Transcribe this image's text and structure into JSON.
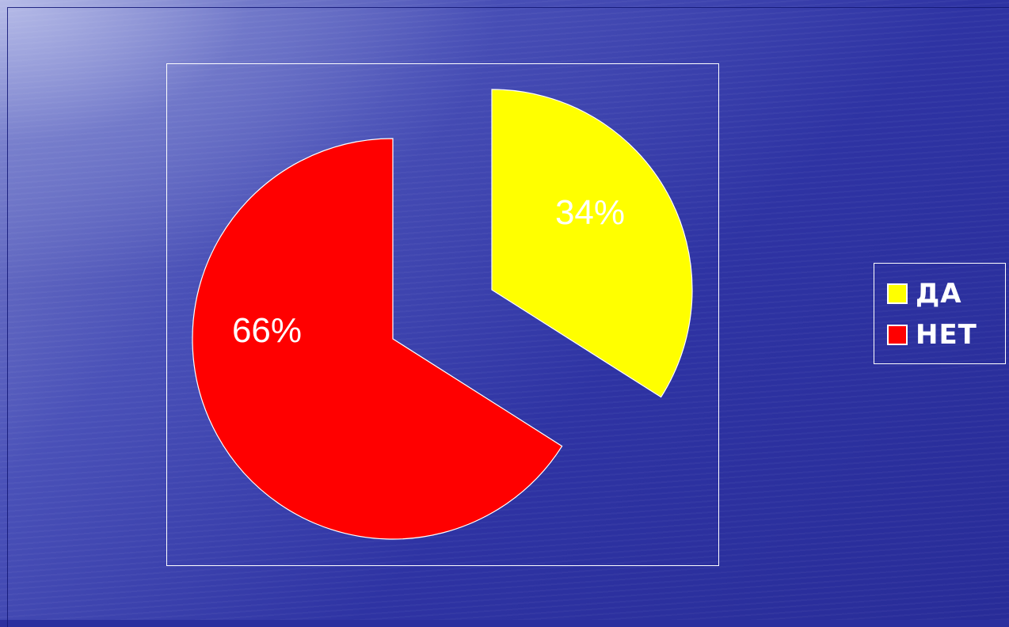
{
  "chart_data": {
    "type": "pie",
    "categories": [
      "ДА",
      "НЕТ"
    ],
    "values": [
      34,
      66
    ],
    "labels": [
      "34%",
      "66%"
    ],
    "colors": [
      "#ffff00",
      "#ff0000"
    ],
    "exploded": true,
    "legend": {
      "position": "right",
      "entries": [
        "ДА",
        "НЕТ"
      ]
    }
  },
  "colors": {
    "background": "#2e33a3",
    "border": "#ffffff",
    "text": "#ffffff"
  }
}
